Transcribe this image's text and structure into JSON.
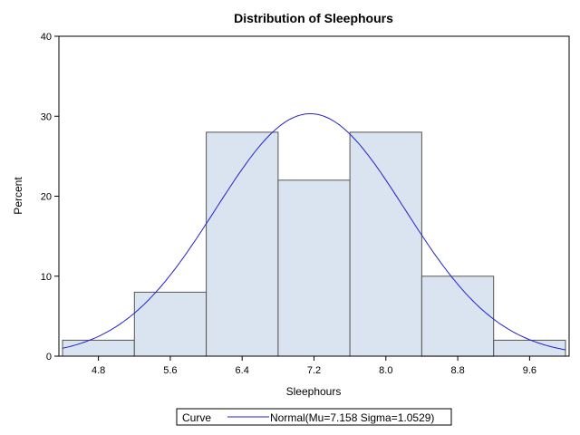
{
  "chart_data": {
    "type": "bar",
    "title": "Distribution of Sleephours",
    "xlabel": "Sleephours",
    "ylabel": "Percent",
    "bin_width": 0.8,
    "xlim": [
      4.36,
      10.04
    ],
    "ylim": [
      0,
      40
    ],
    "x_ticks": [
      "4.8",
      "5.6",
      "6.4",
      "7.2",
      "8.0",
      "8.8",
      "9.6"
    ],
    "y_ticks": [
      "0",
      "10",
      "20",
      "30",
      "40"
    ],
    "bins": [
      {
        "center": 4.8,
        "value": 2
      },
      {
        "center": 5.6,
        "value": 8
      },
      {
        "center": 6.4,
        "value": 28
      },
      {
        "center": 7.2,
        "value": 22
      },
      {
        "center": 8.0,
        "value": 28
      },
      {
        "center": 8.8,
        "value": 10
      },
      {
        "center": 9.6,
        "value": 2
      }
    ],
    "curve": {
      "distribution": "normal",
      "mu": 7.158,
      "sigma": 1.0529,
      "color": "#2222cc"
    },
    "bar_color": "#dae3f0",
    "grid": false,
    "legend": {
      "position": "bottom",
      "title": "Curve",
      "entry": "Normal(Mu=7.158 Sigma=1.0529)"
    }
  }
}
